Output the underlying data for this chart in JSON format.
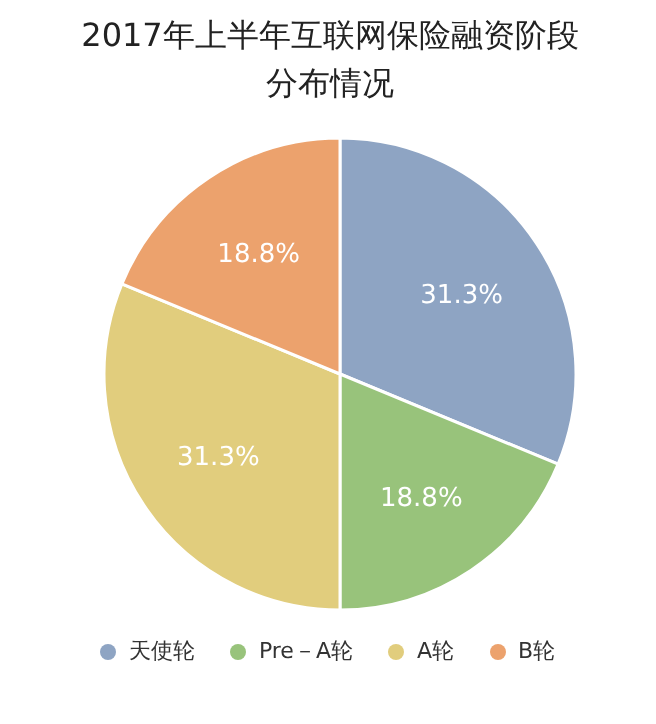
{
  "chart_data": {
    "type": "pie",
    "title": "2017年上半年互联网保险融资阶段分布情况",
    "categories": [
      "天使轮",
      "Pre－A轮",
      "A轮",
      "B轮"
    ],
    "values": [
      31.3,
      18.8,
      31.3,
      18.8
    ],
    "value_labels": [
      "31.3%",
      "18.8%",
      "31.3%",
      "18.8%"
    ],
    "colors": [
      "#8ea4c3",
      "#98c37b",
      "#e1cd7d",
      "#eca26d"
    ],
    "legend": "bottom"
  }
}
